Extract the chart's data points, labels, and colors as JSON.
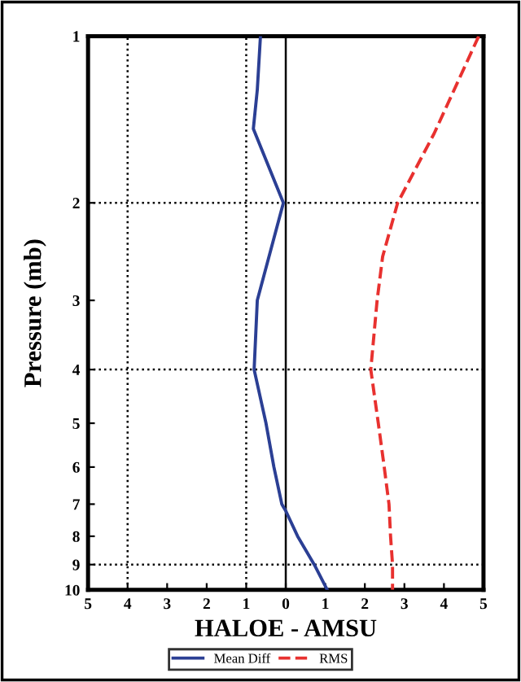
{
  "chart_data": {
    "type": "line",
    "xlabel": "HALOE - AMSU",
    "ylabel": "Pressure (mb)",
    "series": [
      {
        "name": "Mean Diff",
        "color": "#2b3f94",
        "line_style": "solid",
        "x": [
          -0.64,
          -0.72,
          -0.82,
          -0.06,
          -0.72,
          -0.8,
          -0.5,
          -0.3,
          -0.1,
          0.0,
          0.3,
          0.72,
          1.05
        ],
        "values": [
          1,
          1.25,
          1.47,
          2,
          3,
          4,
          5,
          6,
          7,
          7.2,
          8,
          9,
          10
        ]
      },
      {
        "name": "RMS",
        "color": "#e8312f",
        "line_style": "dashed",
        "x": [
          4.88,
          3.75,
          2.83,
          2.45,
          2.31,
          2.15,
          2.34,
          2.49,
          2.61,
          2.65,
          2.7,
          2.7
        ],
        "values": [
          1,
          1.5,
          2,
          2.5,
          3,
          4,
          5,
          6,
          7,
          8,
          9,
          10
        ]
      }
    ],
    "log": "y",
    "ylim": [
      10,
      1
    ],
    "yticks": [
      1,
      2,
      3,
      4,
      5,
      6,
      7,
      8,
      9,
      10
    ],
    "xlim": [
      -5,
      5
    ],
    "xticks": [
      {
        "value": -5,
        "label": "5"
      },
      {
        "value": -4,
        "label": "4"
      },
      {
        "value": -3,
        "label": "3"
      },
      {
        "value": -2,
        "label": "2"
      },
      {
        "value": -1,
        "label": "1"
      },
      0,
      1,
      2,
      3,
      4,
      5
    ],
    "ref_lines": [
      {
        "axis": "x",
        "value": 0,
        "color": "#000000",
        "line_style": "solid"
      },
      {
        "axis": "x",
        "value": -4,
        "color": "#000000",
        "line_style": "dotted"
      },
      {
        "axis": "x",
        "value": -1,
        "color": "#000000",
        "line_style": "dotted"
      },
      {
        "axis": "y",
        "value": 2,
        "color": "#000000",
        "line_style": "dotted"
      },
      {
        "axis": "y",
        "value": 4,
        "color": "#000000",
        "line_style": "dotted"
      },
      {
        "axis": "y",
        "value": 9,
        "color": "#000000",
        "line_style": "dotted"
      }
    ],
    "grid": false,
    "legend": "bottom",
    "marker": "none"
  }
}
